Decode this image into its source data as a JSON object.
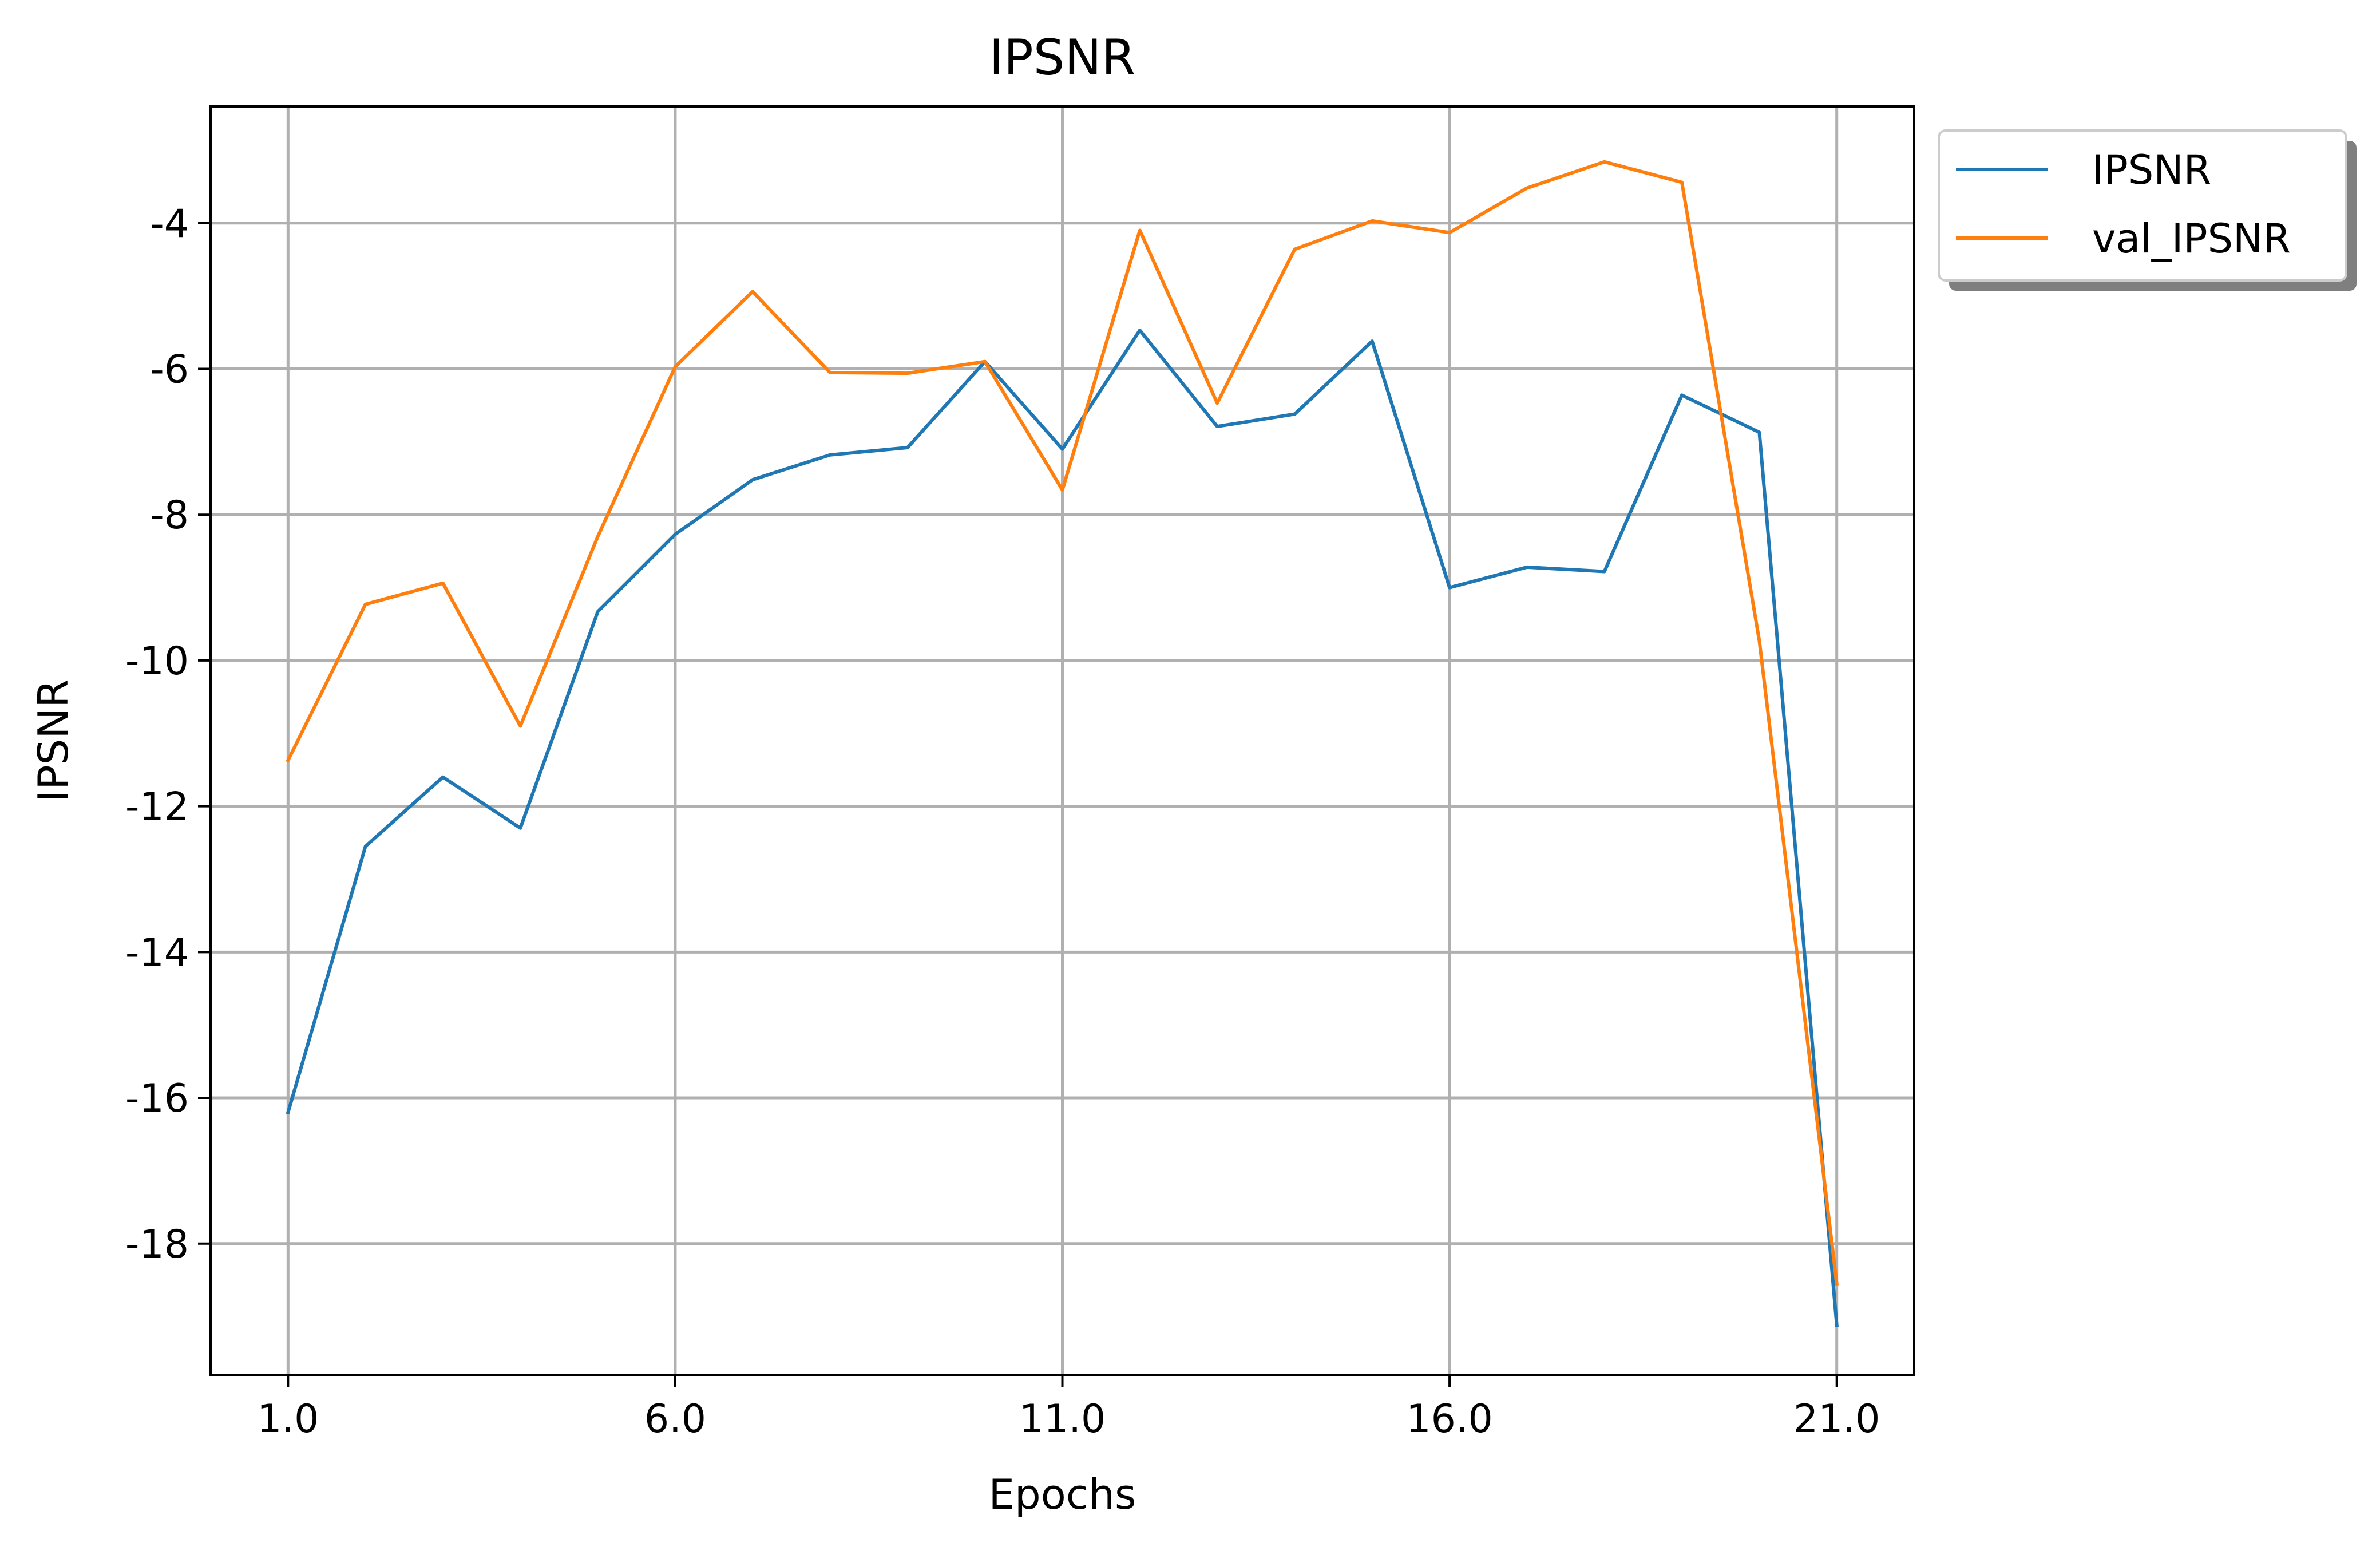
{
  "chart_data": {
    "type": "line",
    "title": "IPSNR",
    "xlabel": "Epochs",
    "ylabel": "IPSNR",
    "xlim": [
      0.0,
      22.0
    ],
    "ylim": [
      -19.8,
      -2.4
    ],
    "xticks": [
      1,
      6,
      11,
      16,
      21
    ],
    "xtick_labels": [
      "1.0",
      "6.0",
      "11.0",
      "16.0",
      "21.0"
    ],
    "yticks": [
      -18,
      -16,
      -14,
      -12,
      -10,
      -8,
      -6,
      -4
    ],
    "ytick_labels": [
      "-18",
      "-16",
      "-14",
      "-12",
      "-10",
      "-8",
      "-6",
      "-4"
    ],
    "grid": true,
    "legend_position": "outside top-right",
    "x": [
      1,
      2,
      3,
      4,
      5,
      6,
      7,
      8,
      9,
      10,
      11,
      12,
      13,
      14,
      15,
      16,
      17,
      18,
      19,
      20,
      21
    ],
    "series": [
      {
        "name": "IPSNR",
        "color": "#1f77b4",
        "values": [
          -16.2,
          -12.55,
          -11.6,
          -12.3,
          -9.33,
          -8.27,
          -7.52,
          -7.18,
          -7.08,
          -5.9,
          -7.1,
          -5.47,
          -6.79,
          -6.62,
          -5.62,
          -9.0,
          -8.72,
          -8.78,
          -6.36,
          -6.87,
          -19.12
        ]
      },
      {
        "name": "val_IPSNR",
        "color": "#ff7f0e",
        "values": [
          -11.37,
          -9.23,
          -8.94,
          -10.9,
          -8.3,
          -5.97,
          -4.94,
          -6.05,
          -6.06,
          -5.9,
          -7.66,
          -4.1,
          -6.47,
          -4.36,
          -3.97,
          -4.13,
          -3.52,
          -3.16,
          -3.44,
          -9.73,
          -18.55
        ]
      }
    ]
  }
}
